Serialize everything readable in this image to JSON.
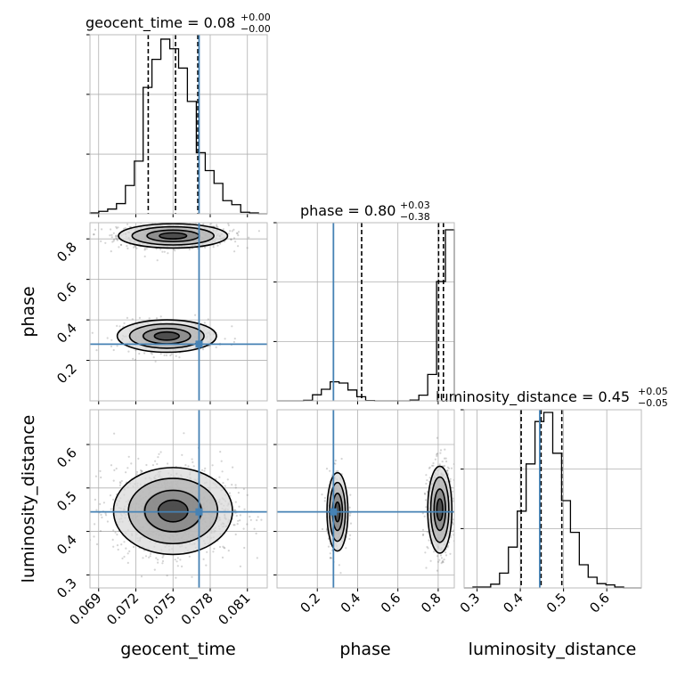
{
  "chart_data": {
    "type": "corner",
    "parameters": [
      "geocent_time",
      "phase",
      "luminosity_distance"
    ],
    "truth": {
      "geocent_time": 0.0771,
      "phase": 0.28,
      "luminosity_distance": 0.445
    },
    "panels": {
      "geocent_time": {
        "title_prefix": "geocent_time = 0.08",
        "title_sup": "+0.00",
        "title_sub": "−0.00",
        "xlim": [
          0.0683,
          0.0826
        ],
        "ymax": 1.02,
        "quantiles": [
          0.073,
          0.0752,
          0.077
        ],
        "hist_edges": [
          0.0683,
          0.06901,
          0.06973,
          0.07044,
          0.07116,
          0.07188,
          0.07259,
          0.0733,
          0.07402,
          0.07474,
          0.07545,
          0.07616,
          0.07688,
          0.0776,
          0.07831,
          0.07902,
          0.07974,
          0.08046,
          0.08117,
          0.08189,
          0.0826
        ],
        "hist_values": [
          0.005,
          0.014,
          0.027,
          0.058,
          0.161,
          0.3,
          0.72,
          0.88,
          0.995,
          0.94,
          0.83,
          0.64,
          0.348,
          0.246,
          0.173,
          0.075,
          0.052,
          0.009,
          0.005,
          0.0
        ],
        "ticks": [
          "0.069",
          "0.072",
          "0.075",
          "0.078",
          "0.081"
        ],
        "tick_values": [
          0.069,
          0.072,
          0.075,
          0.078,
          0.081
        ]
      },
      "phase": {
        "title_prefix": "phase = 0.80",
        "title_sup": "+0.03",
        "title_sub": "−0.38",
        "xlim": [
          0.0,
          0.88
        ],
        "ymax": 1.0,
        "quantiles": [
          0.42,
          0.802,
          0.826
        ],
        "hist_edges": [
          0.0,
          0.044,
          0.088,
          0.132,
          0.176,
          0.22,
          0.264,
          0.308,
          0.352,
          0.396,
          0.44,
          0.484,
          0.528,
          0.572,
          0.616,
          0.66,
          0.704,
          0.748,
          0.792,
          0.836,
          0.88
        ],
        "hist_values": [
          0.0,
          0.0,
          0.0,
          0.003,
          0.034,
          0.065,
          0.107,
          0.1,
          0.061,
          0.023,
          0.002,
          0.0,
          0.0,
          0.0,
          0.0,
          0.004,
          0.032,
          0.148,
          0.67,
          0.96
        ],
        "ticks": [
          "0.2",
          "0.4",
          "0.6",
          "0.8"
        ],
        "tick_values": [
          0.2,
          0.4,
          0.6,
          0.8
        ],
        "yticks": [
          "0.2",
          "0.4",
          "0.6",
          "0.8"
        ]
      },
      "luminosity_distance": {
        "title_prefix": "luminosity_distance = 0.45",
        "title_sup": "+0.05",
        "title_sub": "−0.05",
        "xlim": [
          0.27,
          0.68
        ],
        "ymax": 1.0,
        "quantiles": [
          0.402,
          0.448,
          0.496
        ],
        "hist_edges": [
          0.27,
          0.2905,
          0.311,
          0.3315,
          0.352,
          0.3725,
          0.393,
          0.4135,
          0.434,
          0.4545,
          0.475,
          0.4955,
          0.516,
          0.5365,
          0.557,
          0.5775,
          0.598,
          0.6185,
          0.639,
          0.6595,
          0.68
        ],
        "hist_values": [
          0.0,
          0.005,
          0.005,
          0.021,
          0.083,
          0.229,
          0.431,
          0.696,
          0.934,
          0.985,
          0.756,
          0.49,
          0.312,
          0.13,
          0.06,
          0.024,
          0.017,
          0.005,
          0.0,
          0.0
        ],
        "ticks": [
          "0.3",
          "0.4",
          "0.5",
          "0.6"
        ],
        "tick_values": [
          0.3,
          0.4,
          0.5,
          0.6
        ],
        "yticks": [
          "0.3",
          "0.4",
          "0.5",
          "0.6"
        ]
      }
    },
    "scatter_blobs": {
      "phase_vs_geocent_time": [
        {
          "cx": 0.075,
          "cy": 0.815,
          "sx": 0.0022,
          "sy": 0.03,
          "n": 900
        },
        {
          "cx": 0.0745,
          "cy": 0.32,
          "sx": 0.002,
          "sy": 0.04,
          "n": 350
        }
      ],
      "luminosity_distance_vs_geocent_time": [
        {
          "cx": 0.075,
          "cy": 0.447,
          "sx": 0.0024,
          "sy": 0.05,
          "n": 1300
        }
      ],
      "luminosity_distance_vs_phase": [
        {
          "cx": 0.3,
          "cy": 0.445,
          "sx": 0.026,
          "sy": 0.045,
          "n": 300
        },
        {
          "cx": 0.808,
          "cy": 0.45,
          "sx": 0.03,
          "sy": 0.05,
          "n": 700
        }
      ]
    }
  }
}
